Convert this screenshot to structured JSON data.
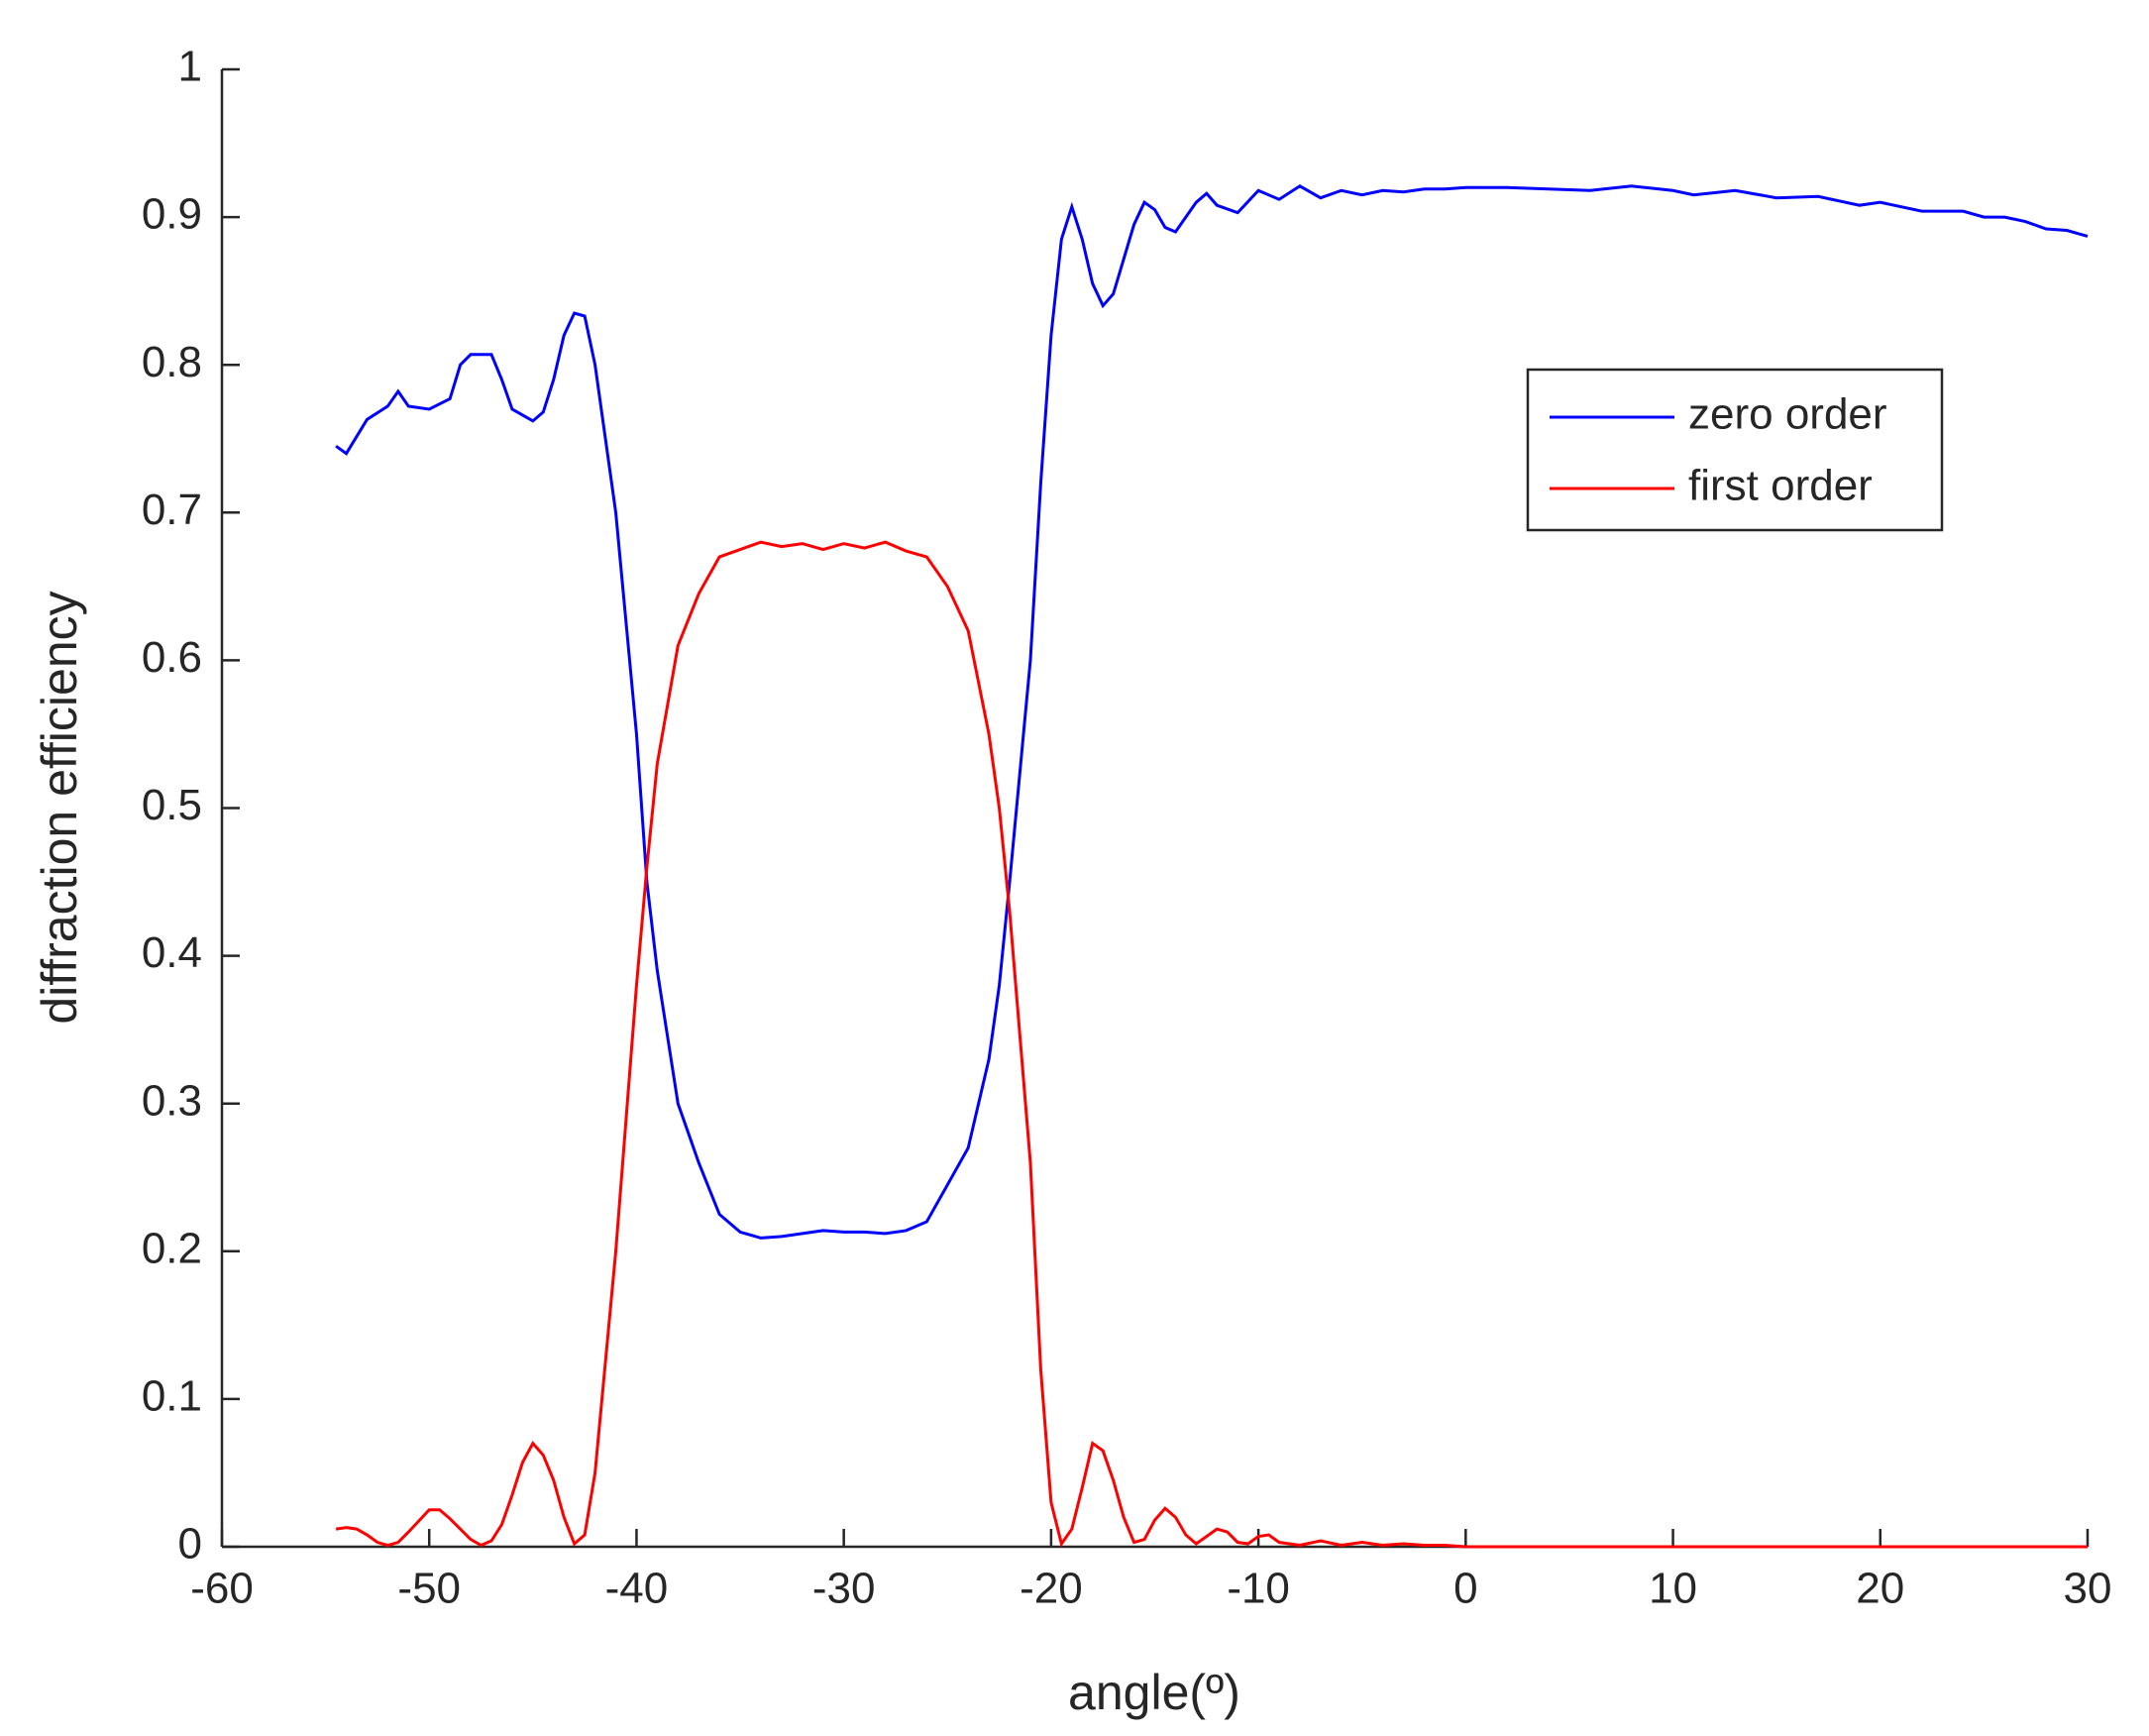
{
  "chart_data": {
    "type": "line",
    "xlabel": "angle(º)",
    "ylabel": "diffraction efficiency",
    "xlim": [
      -60,
      30
    ],
    "xticks": [
      -60,
      -50,
      -40,
      -30,
      -20,
      -10,
      0,
      10,
      20,
      30
    ],
    "ylim": [
      0,
      1
    ],
    "yticks": [
      0,
      0.1,
      0.2,
      0.3,
      0.4,
      0.5,
      0.6,
      0.7,
      0.8,
      0.9,
      1
    ],
    "legend": "upper right",
    "series": [
      {
        "name": "zero order",
        "color": "#0000ff",
        "x": [
          -54.5,
          -54,
          -53,
          -52,
          -51.5,
          -51,
          -50,
          -49,
          -48.5,
          -48,
          -47,
          -46.5,
          -46,
          -45,
          -44.5,
          -44,
          -43.5,
          -43,
          -42.5,
          -42,
          -41,
          -40,
          -39.5,
          -39,
          -38,
          -37,
          -36,
          -35,
          -34,
          -33,
          -32,
          -31,
          -30,
          -29,
          -28,
          -27,
          -26,
          -25,
          -24,
          -23,
          -22.5,
          -22,
          -21,
          -20.5,
          -20,
          -19.5,
          -19,
          -18.5,
          -18,
          -17.5,
          -17,
          -16,
          -15.5,
          -15,
          -14.5,
          -14,
          -13,
          -12.5,
          -12,
          -11,
          -10,
          -9,
          -8,
          -7,
          -6,
          -5,
          -4,
          -3,
          -2,
          -1,
          0,
          2,
          4,
          6,
          8,
          10,
          11,
          13,
          15,
          17,
          19,
          20,
          22,
          24,
          25,
          26,
          27,
          28,
          29,
          30
        ],
        "values": [
          0.745,
          0.74,
          0.763,
          0.772,
          0.782,
          0.772,
          0.77,
          0.777,
          0.8,
          0.807,
          0.807,
          0.79,
          0.77,
          0.762,
          0.768,
          0.79,
          0.82,
          0.835,
          0.833,
          0.8,
          0.7,
          0.55,
          0.45,
          0.39,
          0.3,
          0.26,
          0.225,
          0.213,
          0.209,
          0.21,
          0.212,
          0.214,
          0.213,
          0.213,
          0.212,
          0.214,
          0.22,
          0.245,
          0.27,
          0.33,
          0.38,
          0.45,
          0.6,
          0.72,
          0.82,
          0.885,
          0.907,
          0.885,
          0.855,
          0.84,
          0.848,
          0.895,
          0.91,
          0.905,
          0.893,
          0.89,
          0.91,
          0.916,
          0.908,
          0.903,
          0.918,
          0.912,
          0.921,
          0.913,
          0.918,
          0.915,
          0.918,
          0.917,
          0.919,
          0.919,
          0.92,
          0.92,
          0.919,
          0.918,
          0.921,
          0.918,
          0.915,
          0.918,
          0.913,
          0.914,
          0.908,
          0.91,
          0.904,
          0.904,
          0.9,
          0.9,
          0.897,
          0.892,
          0.891,
          0.887
        ]
      },
      {
        "name": "first order",
        "color": "#ff0000",
        "x": [
          -54.5,
          -54,
          -53.5,
          -53,
          -52.5,
          -52,
          -51.5,
          -51,
          -50,
          -49.5,
          -49,
          -48,
          -47.5,
          -47,
          -46.5,
          -46,
          -45.5,
          -45,
          -44.5,
          -44,
          -43.5,
          -43,
          -42.5,
          -42,
          -41,
          -40,
          -39.5,
          -39,
          -38,
          -37,
          -36,
          -35,
          -34,
          -33,
          -32,
          -31,
          -30,
          -29,
          -28,
          -27,
          -26,
          -25,
          -24,
          -23,
          -22.5,
          -22,
          -21,
          -20.5,
          -20,
          -19.5,
          -19,
          -18.5,
          -18,
          -17.5,
          -17,
          -16.5,
          -16,
          -15.5,
          -15,
          -14.5,
          -14,
          -13.5,
          -13,
          -12,
          -11.5,
          -11,
          -10.5,
          -10,
          -9.5,
          -9,
          -8,
          -7,
          -6,
          -5,
          -4,
          -3,
          -2,
          -1,
          0,
          10,
          20,
          30
        ],
        "values": [
          0.012,
          0.013,
          0.012,
          0.008,
          0.003,
          0.001,
          0.003,
          0.01,
          0.025,
          0.025,
          0.019,
          0.005,
          0.001,
          0.004,
          0.015,
          0.035,
          0.057,
          0.07,
          0.062,
          0.045,
          0.02,
          0.002,
          0.008,
          0.05,
          0.2,
          0.38,
          0.46,
          0.53,
          0.61,
          0.645,
          0.67,
          0.675,
          0.68,
          0.677,
          0.679,
          0.675,
          0.679,
          0.676,
          0.68,
          0.674,
          0.67,
          0.65,
          0.62,
          0.55,
          0.5,
          0.43,
          0.26,
          0.12,
          0.03,
          0.002,
          0.012,
          0.04,
          0.07,
          0.065,
          0.045,
          0.02,
          0.003,
          0.005,
          0.018,
          0.026,
          0.02,
          0.008,
          0.002,
          0.012,
          0.01,
          0.003,
          0.002,
          0.007,
          0.008,
          0.003,
          0.001,
          0.004,
          0.001,
          0.003,
          0.001,
          0.002,
          0.001,
          0.001,
          0,
          0,
          0,
          0
        ]
      }
    ]
  }
}
